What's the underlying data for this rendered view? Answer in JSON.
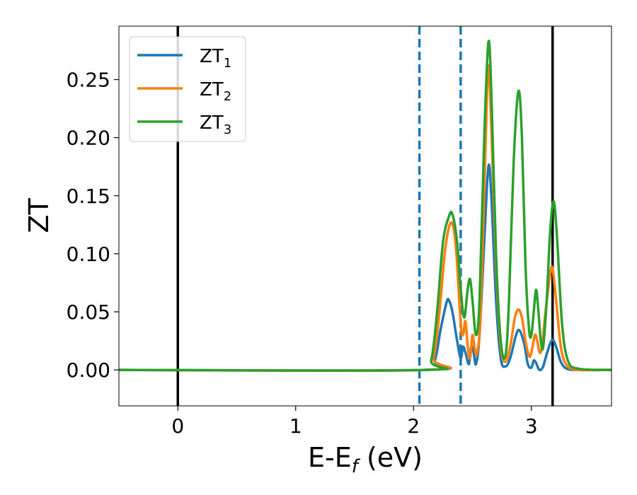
{
  "chart_data": {
    "type": "line",
    "title": "",
    "xlabel_main": "E-E",
    "xlabel_sub": "f",
    "xlabel_tail": " (eV)",
    "ylabel": "ZT",
    "xlim": [
      -0.5,
      3.68
    ],
    "ylim": [
      -0.031,
      0.296
    ],
    "xticks": [
      0,
      1,
      2,
      3
    ],
    "xtick_labels": [
      "0",
      "1",
      "2",
      "3"
    ],
    "yticks": [
      0.0,
      0.05,
      0.1,
      0.15,
      0.2,
      0.25
    ],
    "ytick_labels": [
      "0.00",
      "0.05",
      "0.10",
      "0.15",
      "0.20",
      "0.25"
    ],
    "grid": false,
    "legend_position": "top-left",
    "vertical_lines": [
      {
        "x": 0.0,
        "style": "solid",
        "color": "#000000"
      },
      {
        "x": 3.18,
        "style": "solid",
        "color": "#000000"
      },
      {
        "x": 2.05,
        "style": "dashed",
        "color": "#1f77b4"
      },
      {
        "x": 2.4,
        "style": "dashed",
        "color": "#1f77b4"
      }
    ],
    "series": [
      {
        "name_main": "ZT",
        "name_sub": "1",
        "color": "#1f77b4",
        "points": [
          [
            -0.5,
            0
          ],
          [
            2.1,
            0
          ],
          [
            2.18,
            0.008
          ],
          [
            2.23,
            0.035
          ],
          [
            2.28,
            0.058
          ],
          [
            2.3,
            0.06
          ],
          [
            2.33,
            0.05
          ],
          [
            2.37,
            0.025
          ],
          [
            2.4,
            0.01
          ],
          [
            2.42,
            0.02
          ],
          [
            2.44,
            0.015
          ],
          [
            2.47,
            0.005
          ],
          [
            2.49,
            0.02
          ],
          [
            2.51,
            0.015
          ],
          [
            2.53,
            0.005
          ],
          [
            2.56,
            0.03
          ],
          [
            2.6,
            0.11
          ],
          [
            2.635,
            0.175
          ],
          [
            2.66,
            0.15
          ],
          [
            2.7,
            0.06
          ],
          [
            2.74,
            0.01
          ],
          [
            2.78,
            0.003
          ],
          [
            2.82,
            0.01
          ],
          [
            2.87,
            0.03
          ],
          [
            2.9,
            0.034
          ],
          [
            2.94,
            0.022
          ],
          [
            2.97,
            0.005
          ],
          [
            3.0,
            0.002
          ],
          [
            3.02,
            0.008
          ],
          [
            3.04,
            0.006
          ],
          [
            3.06,
            0.001
          ],
          [
            3.08,
            0.0
          ],
          [
            3.1,
            0.003
          ],
          [
            3.12,
            0.01
          ],
          [
            3.15,
            0.02
          ],
          [
            3.18,
            0.026
          ],
          [
            3.21,
            0.02
          ],
          [
            3.25,
            0.007
          ],
          [
            3.3,
            0.001
          ],
          [
            3.4,
            0
          ],
          [
            3.68,
            0
          ]
        ]
      },
      {
        "name_main": "ZT",
        "name_sub": "2",
        "color": "#ff7f0e",
        "points": [
          [
            -0.5,
            0
          ],
          [
            2.1,
            0
          ],
          [
            2.17,
            0.01
          ],
          [
            2.22,
            0.05
          ],
          [
            2.27,
            0.105
          ],
          [
            2.32,
            0.127
          ],
          [
            2.36,
            0.105
          ],
          [
            2.4,
            0.04
          ],
          [
            2.42,
            0.03
          ],
          [
            2.44,
            0.042
          ],
          [
            2.46,
            0.02
          ],
          [
            2.48,
            0.01
          ],
          [
            2.5,
            0.03
          ],
          [
            2.52,
            0.018
          ],
          [
            2.54,
            0.015
          ],
          [
            2.57,
            0.05
          ],
          [
            2.61,
            0.19
          ],
          [
            2.635,
            0.262
          ],
          [
            2.66,
            0.21
          ],
          [
            2.7,
            0.09
          ],
          [
            2.74,
            0.02
          ],
          [
            2.78,
            0.007
          ],
          [
            2.82,
            0.02
          ],
          [
            2.86,
            0.045
          ],
          [
            2.89,
            0.052
          ],
          [
            2.92,
            0.045
          ],
          [
            2.95,
            0.025
          ],
          [
            2.98,
            0.012
          ],
          [
            3.0,
            0.015
          ],
          [
            3.03,
            0.03
          ],
          [
            3.05,
            0.025
          ],
          [
            3.07,
            0.015
          ],
          [
            3.09,
            0.02
          ],
          [
            3.12,
            0.05
          ],
          [
            3.16,
            0.083
          ],
          [
            3.18,
            0.087
          ],
          [
            3.21,
            0.06
          ],
          [
            3.25,
            0.02
          ],
          [
            3.3,
            0.004
          ],
          [
            3.4,
            0
          ],
          [
            3.68,
            0
          ]
        ]
      },
      {
        "name_main": "ZT",
        "name_sub": "3",
        "color": "#2ca02c",
        "points": [
          [
            -0.5,
            0
          ],
          [
            2.08,
            0
          ],
          [
            2.15,
            0.008
          ],
          [
            2.2,
            0.05
          ],
          [
            2.25,
            0.11
          ],
          [
            2.3,
            0.132
          ],
          [
            2.33,
            0.134
          ],
          [
            2.37,
            0.11
          ],
          [
            2.4,
            0.07
          ],
          [
            2.43,
            0.045
          ],
          [
            2.46,
            0.07
          ],
          [
            2.48,
            0.078
          ],
          [
            2.5,
            0.06
          ],
          [
            2.53,
            0.03
          ],
          [
            2.56,
            0.06
          ],
          [
            2.6,
            0.2
          ],
          [
            2.635,
            0.282
          ],
          [
            2.66,
            0.24
          ],
          [
            2.7,
            0.1
          ],
          [
            2.74,
            0.025
          ],
          [
            2.78,
            0.012
          ],
          [
            2.81,
            0.06
          ],
          [
            2.85,
            0.18
          ],
          [
            2.89,
            0.24
          ],
          [
            2.92,
            0.2
          ],
          [
            2.95,
            0.09
          ],
          [
            2.98,
            0.035
          ],
          [
            3.0,
            0.03
          ],
          [
            3.02,
            0.05
          ],
          [
            3.04,
            0.069
          ],
          [
            3.06,
            0.05
          ],
          [
            3.08,
            0.025
          ],
          [
            3.1,
            0.02
          ],
          [
            3.13,
            0.06
          ],
          [
            3.16,
            0.12
          ],
          [
            3.19,
            0.145
          ],
          [
            3.22,
            0.11
          ],
          [
            3.26,
            0.04
          ],
          [
            3.31,
            0.008
          ],
          [
            3.4,
            0.001
          ],
          [
            3.68,
            0
          ]
        ]
      }
    ]
  }
}
